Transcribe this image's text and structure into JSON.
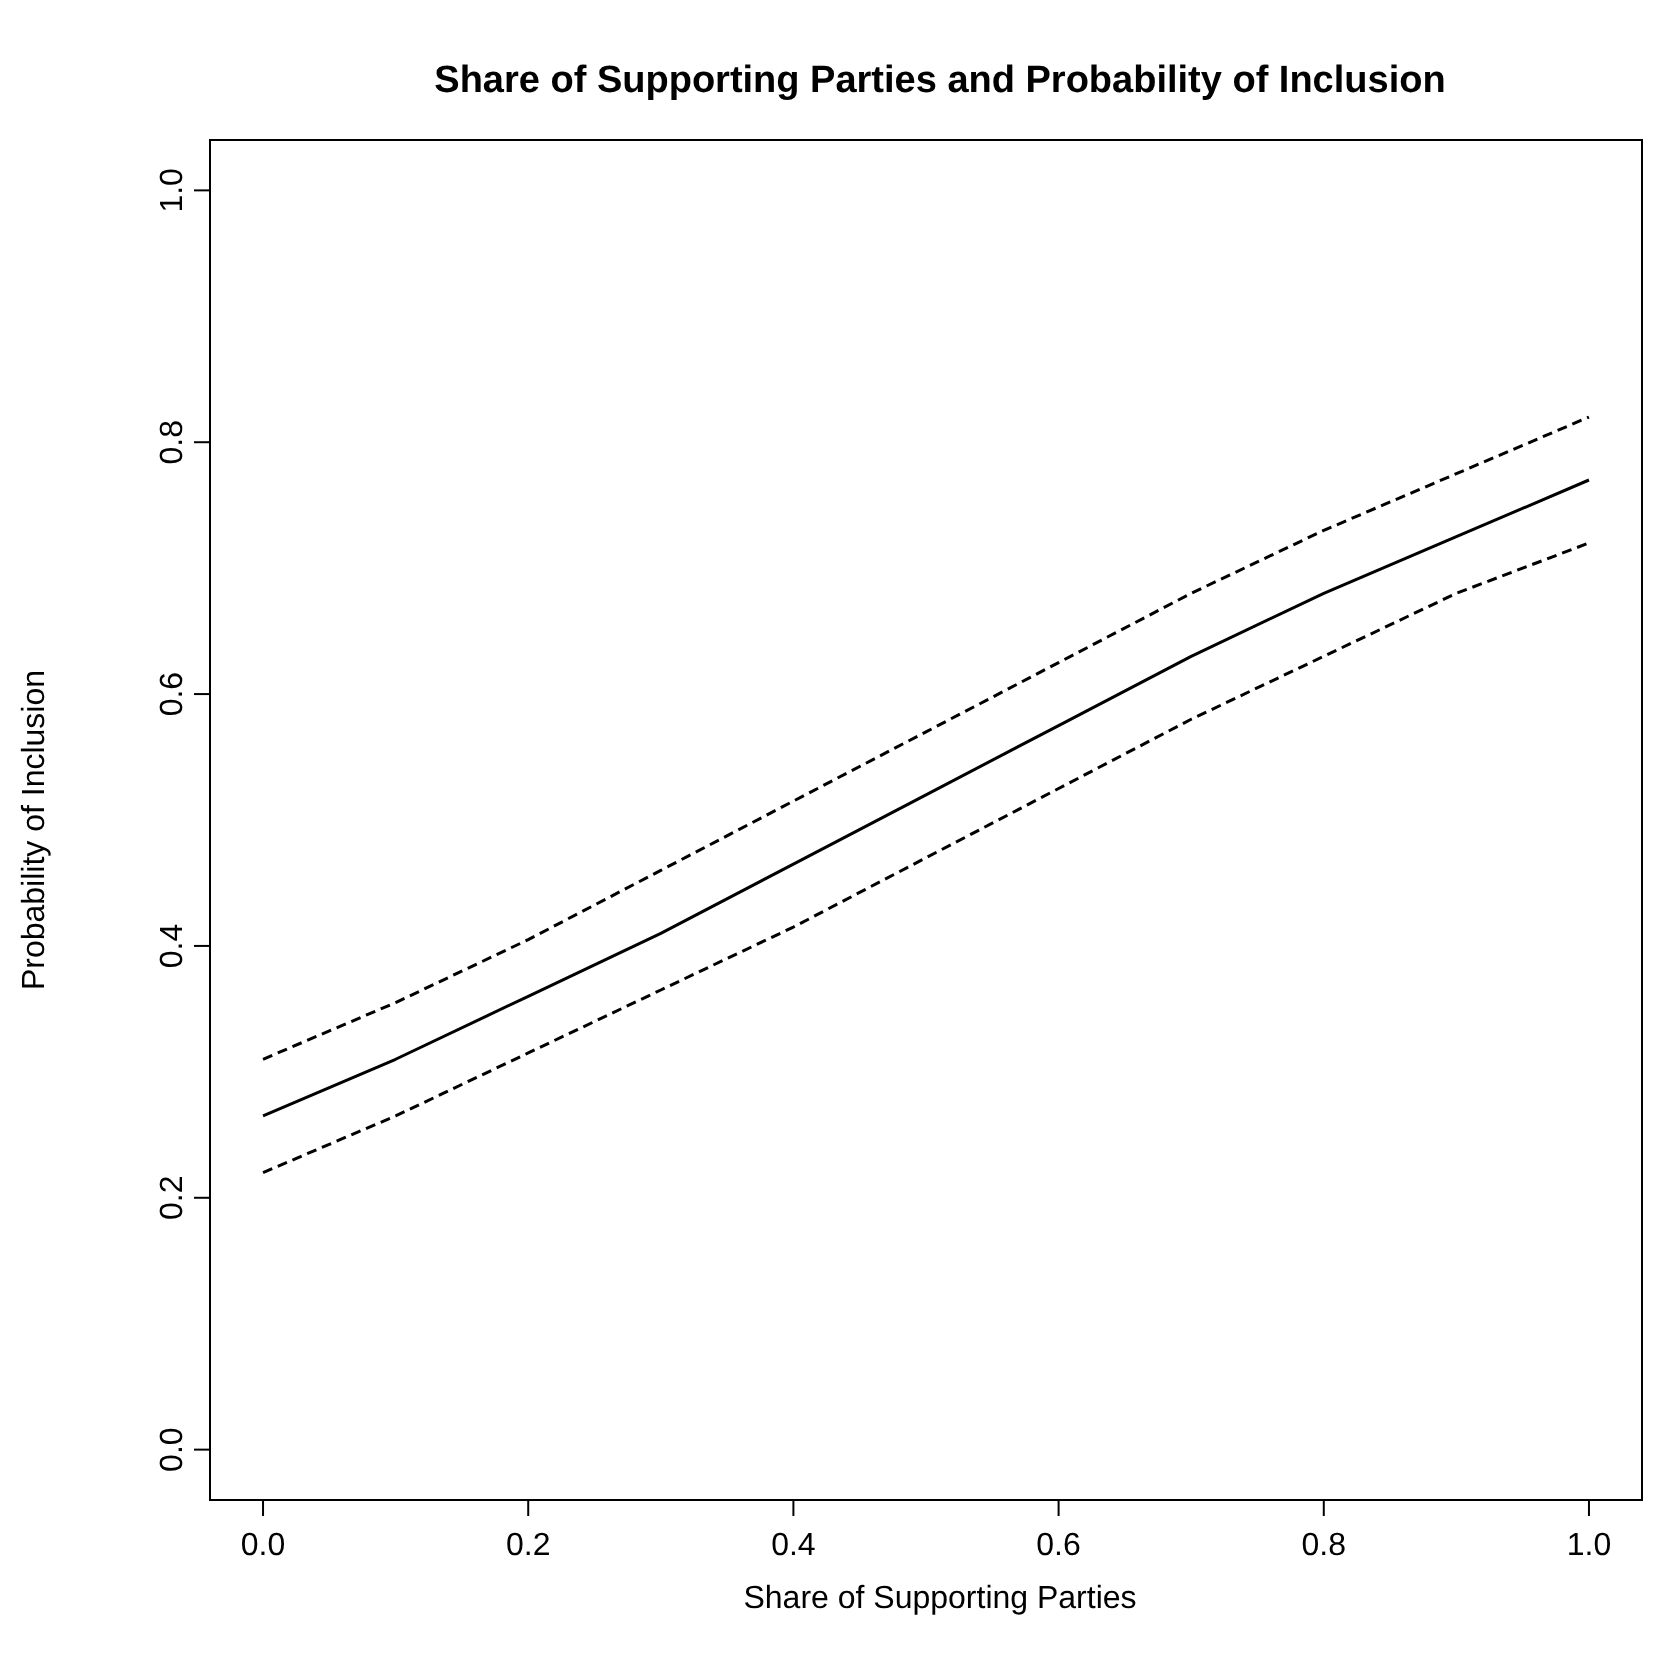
{
  "chart_data": {
    "type": "line",
    "title": "Share of Supporting Parties and Probability of Inclusion",
    "xlabel": "Share of Supporting Parties",
    "ylabel": "Probability of Inclusion",
    "x": [
      0,
      0.1,
      0.2,
      0.3,
      0.4,
      0.5,
      0.6,
      0.7,
      0.8,
      0.9,
      1.0
    ],
    "series": [
      {
        "color": "#000000",
        "line_style": "solid",
        "values": [
          0.265,
          0.31,
          0.36,
          0.41,
          0.465,
          0.52,
          0.575,
          0.63,
          0.68,
          0.725,
          0.77
        ]
      },
      {
        "color": "#000000",
        "line_style": "dashed",
        "values": [
          0.31,
          0.355,
          0.405,
          0.46,
          0.515,
          0.57,
          0.625,
          0.68,
          0.73,
          0.775,
          0.82
        ]
      },
      {
        "color": "#000000",
        "line_style": "dashed",
        "values": [
          0.22,
          0.265,
          0.315,
          0.365,
          0.415,
          0.47,
          0.525,
          0.58,
          0.63,
          0.68,
          0.72
        ]
      }
    ],
    "xlim": [
      -0.04,
      1.04
    ],
    "ylim": [
      -0.04,
      1.04
    ],
    "xticks": [
      {
        "value": 0,
        "label": "0.0"
      },
      {
        "value": 0.2,
        "label": "0.2"
      },
      {
        "value": 0.4,
        "label": "0.4"
      },
      {
        "value": 0.6,
        "label": "0.6"
      },
      {
        "value": 0.8,
        "label": "0.8"
      },
      {
        "value": 1,
        "label": "1.0"
      }
    ],
    "yticks": [
      {
        "value": 0,
        "label": "0.0"
      },
      {
        "value": 0.2,
        "label": "0.2"
      },
      {
        "value": 0.4,
        "label": "0.4"
      },
      {
        "value": 0.6,
        "label": "0.6"
      },
      {
        "value": 0.8,
        "label": "0.8"
      },
      {
        "value": 1,
        "label": "1.0"
      }
    ],
    "grid": false,
    "legend": false,
    "marker": "none"
  }
}
